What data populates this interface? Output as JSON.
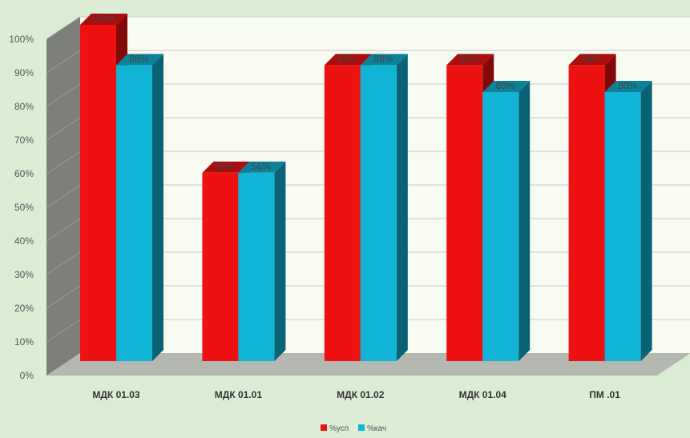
{
  "chart_data": {
    "type": "bar",
    "title": "",
    "xlabel": "",
    "ylabel": "",
    "categories": [
      "МДК 01.03",
      "МДК 01.01",
      "МДК 01.02",
      "МДК 01.04",
      "ПМ .01"
    ],
    "series": [
      {
        "name": "%усп",
        "values": [
          100,
          56,
          88,
          88,
          88
        ],
        "labels": [
          "100%",
          "56%",
          "88%",
          "88%",
          "88%"
        ],
        "color": "#ee1111"
      },
      {
        "name": "%кач",
        "values": [
          88,
          56,
          88,
          80,
          80
        ],
        "labels": [
          "88%",
          "56%",
          "88%",
          "80%",
          "80%"
        ],
        "color": "#11b4d4"
      }
    ],
    "ylim": [
      0,
      100
    ],
    "yticks": [
      0,
      10,
      20,
      30,
      40,
      50,
      60,
      70,
      80,
      90,
      100
    ],
    "ytick_labels": [
      "0%",
      "10%",
      "20%",
      "30%",
      "40%",
      "50%",
      "60%",
      "70%",
      "80%",
      "90%",
      "100%"
    ],
    "grid": true,
    "legend": "bottom-center",
    "style": "3d-column"
  },
  "colors": {
    "background": "#dcedd6",
    "wall": "#f8fbf2",
    "floor": "#b5b7b1",
    "side_wall": "#7d807a"
  }
}
